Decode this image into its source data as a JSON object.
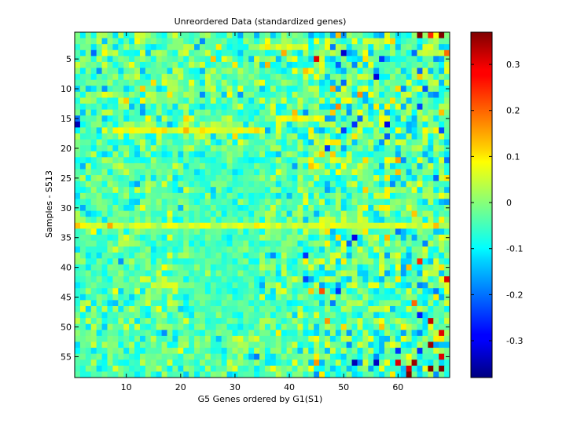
{
  "chart_data": {
    "type": "heatmap",
    "title": "Unreordered Data (standardized genes)",
    "xlabel": "G5 Genes ordered by G1(S1)",
    "ylabel": "Samples - S513",
    "n_cols": 69,
    "n_rows": 58,
    "xlim": [
      0.5,
      69.5
    ],
    "ylim": [
      0.5,
      58.5
    ],
    "x_ticks": [
      10,
      20,
      30,
      40,
      50,
      60
    ],
    "y_ticks": [
      5,
      10,
      15,
      20,
      25,
      30,
      35,
      40,
      45,
      50,
      55
    ],
    "colorbar": {
      "colormap": "jet",
      "range": [
        -0.38,
        0.37
      ],
      "ticks": [
        -0.3,
        -0.2,
        -0.1,
        0,
        0.1,
        0.2,
        0.3
      ],
      "tick_labels": [
        "-0.3",
        "-0.2",
        "-0.1",
        "0",
        "0.1",
        "0.2",
        "0.3"
      ]
    },
    "noise_std": 0.05,
    "noise_seed": 513,
    "highlight_cells": [
      {
        "row": 1,
        "col": 64,
        "value": 0.37
      },
      {
        "row": 1,
        "col": 68,
        "value": 0.37
      },
      {
        "row": 1,
        "col": 66,
        "value": 0.25
      },
      {
        "row": 5,
        "col": 45,
        "value": 0.3
      },
      {
        "row": 16,
        "col": 1,
        "value": -0.34
      },
      {
        "row": 15,
        "col": 1,
        "value": -0.2
      },
      {
        "row": 16,
        "col": 58,
        "value": -0.3
      },
      {
        "row": 16,
        "col": 52,
        "value": -0.25
      },
      {
        "row": 35,
        "col": 52,
        "value": -0.3
      },
      {
        "row": 38,
        "col": 43,
        "value": -0.25
      },
      {
        "row": 44,
        "col": 46,
        "value": 0.22
      },
      {
        "row": 49,
        "col": 66,
        "value": 0.32
      },
      {
        "row": 51,
        "col": 68,
        "value": 0.3
      },
      {
        "row": 53,
        "col": 66,
        "value": 0.35
      },
      {
        "row": 55,
        "col": 68,
        "value": 0.3
      },
      {
        "row": 56,
        "col": 52,
        "value": -0.34
      },
      {
        "row": 56,
        "col": 56,
        "value": -0.33
      },
      {
        "row": 56,
        "col": 60,
        "value": 0.3
      },
      {
        "row": 56,
        "col": 63,
        "value": 0.35
      },
      {
        "row": 57,
        "col": 62,
        "value": 0.3
      },
      {
        "row": 57,
        "col": 66,
        "value": 0.37
      },
      {
        "row": 57,
        "col": 68,
        "value": 0.37
      },
      {
        "row": 58,
        "col": 62,
        "value": 0.37
      },
      {
        "row": 54,
        "col": 64,
        "value": -0.25
      },
      {
        "row": 4,
        "col": 39,
        "value": 0.15
      },
      {
        "row": 20,
        "col": 47,
        "value": -0.25
      },
      {
        "row": 39,
        "col": 64,
        "value": 0.25
      },
      {
        "row": 42,
        "col": 69,
        "value": 0.3
      },
      {
        "row": 46,
        "col": 63,
        "value": 0.2
      }
    ],
    "band_cells": [
      {
        "row": 17,
        "col_start": 8,
        "col_end": 35,
        "value": 0.08
      },
      {
        "row": 33,
        "col_start": 1,
        "col_end": 69,
        "value": 0.06
      },
      {
        "row": 15,
        "col_start": 38,
        "col_end": 45,
        "value": 0.1
      },
      {
        "row": 3,
        "col_start": 33,
        "col_end": 42,
        "value": 0.06
      }
    ]
  }
}
